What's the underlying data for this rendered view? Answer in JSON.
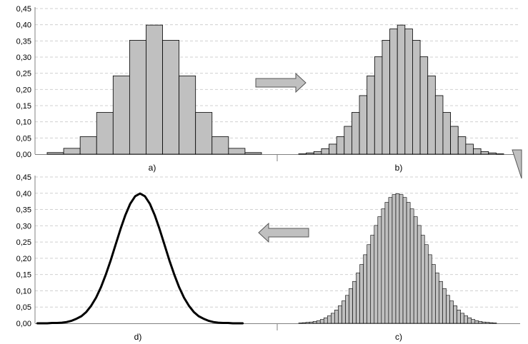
{
  "y_axis_ticks": [
    "0,00",
    "0,05",
    "0,10",
    "0,15",
    "0,20",
    "0,25",
    "0,30",
    "0,35",
    "0,40",
    "0,45"
  ],
  "colors": {
    "bar_fill": "#c0c0c0",
    "bar_stroke": "#000000",
    "arrow_fill": "#c0c0c0",
    "arrow_stroke": "#555555",
    "grid": "#d0d0d0",
    "curve": "#000000"
  },
  "arrows": [
    {
      "name": "arrow-right-icon",
      "direction": "right",
      "from": "a",
      "to": "b"
    },
    {
      "name": "arrow-curved-down-left-icon",
      "direction": "down-left",
      "from": "b",
      "to": "c"
    },
    {
      "name": "arrow-left-icon",
      "direction": "left",
      "from": "c",
      "to": "d"
    }
  ],
  "chart_data": [
    {
      "id": "a",
      "type": "bar",
      "caption": "a)",
      "ylim": [
        0,
        0.45
      ],
      "grid": true,
      "bins": 13,
      "values": [
        0.005,
        0.018,
        0.054,
        0.129,
        0.242,
        0.352,
        0.399,
        0.352,
        0.242,
        0.129,
        0.054,
        0.018,
        0.005
      ]
    },
    {
      "id": "b",
      "type": "bar",
      "caption": "b)",
      "ylim": [
        0,
        0.45
      ],
      "grid": true,
      "bins": 27,
      "values": [
        0.001,
        0.004,
        0.008,
        0.017,
        0.031,
        0.054,
        0.086,
        0.129,
        0.181,
        0.242,
        0.301,
        0.352,
        0.387,
        0.399,
        0.387,
        0.352,
        0.301,
        0.242,
        0.181,
        0.129,
        0.086,
        0.054,
        0.031,
        0.017,
        0.008,
        0.004,
        0.001
      ]
    },
    {
      "id": "c",
      "type": "bar",
      "caption": "c)",
      "ylim": [
        0,
        0.45
      ],
      "grid": true,
      "bins": 55,
      "values": [
        0.001,
        0.002,
        0.003,
        0.004,
        0.006,
        0.008,
        0.012,
        0.017,
        0.023,
        0.031,
        0.041,
        0.054,
        0.069,
        0.086,
        0.107,
        0.129,
        0.155,
        0.181,
        0.211,
        0.242,
        0.271,
        0.301,
        0.328,
        0.352,
        0.372,
        0.387,
        0.396,
        0.399,
        0.396,
        0.387,
        0.372,
        0.352,
        0.328,
        0.301,
        0.271,
        0.242,
        0.211,
        0.181,
        0.155,
        0.129,
        0.107,
        0.086,
        0.069,
        0.054,
        0.041,
        0.031,
        0.023,
        0.017,
        0.012,
        0.008,
        0.006,
        0.004,
        0.003,
        0.002,
        0.001
      ]
    },
    {
      "id": "d",
      "type": "line",
      "caption": "d)",
      "ylim": [
        0,
        0.45
      ],
      "xlim": [
        -4.3,
        4.3
      ],
      "grid": true,
      "x": [
        -4.2,
        -4.0,
        -3.8,
        -3.6,
        -3.4,
        -3.2,
        -3.0,
        -2.8,
        -2.6,
        -2.4,
        -2.2,
        -2.0,
        -1.8,
        -1.6,
        -1.4,
        -1.2,
        -1.0,
        -0.8,
        -0.6,
        -0.4,
        -0.2,
        0.0,
        0.2,
        0.4,
        0.6,
        0.8,
        1.0,
        1.2,
        1.4,
        1.6,
        1.8,
        2.0,
        2.2,
        2.4,
        2.6,
        2.8,
        3.0,
        3.2,
        3.4,
        3.6,
        3.8,
        4.0,
        4.2
      ],
      "y": [
        0.0,
        0.0,
        0.0,
        0.001,
        0.001,
        0.002,
        0.004,
        0.008,
        0.014,
        0.022,
        0.035,
        0.054,
        0.079,
        0.111,
        0.15,
        0.194,
        0.242,
        0.29,
        0.333,
        0.368,
        0.391,
        0.399,
        0.391,
        0.368,
        0.333,
        0.29,
        0.242,
        0.194,
        0.15,
        0.111,
        0.079,
        0.054,
        0.035,
        0.022,
        0.014,
        0.008,
        0.004,
        0.002,
        0.001,
        0.001,
        0.0,
        0.0,
        0.0
      ]
    }
  ]
}
